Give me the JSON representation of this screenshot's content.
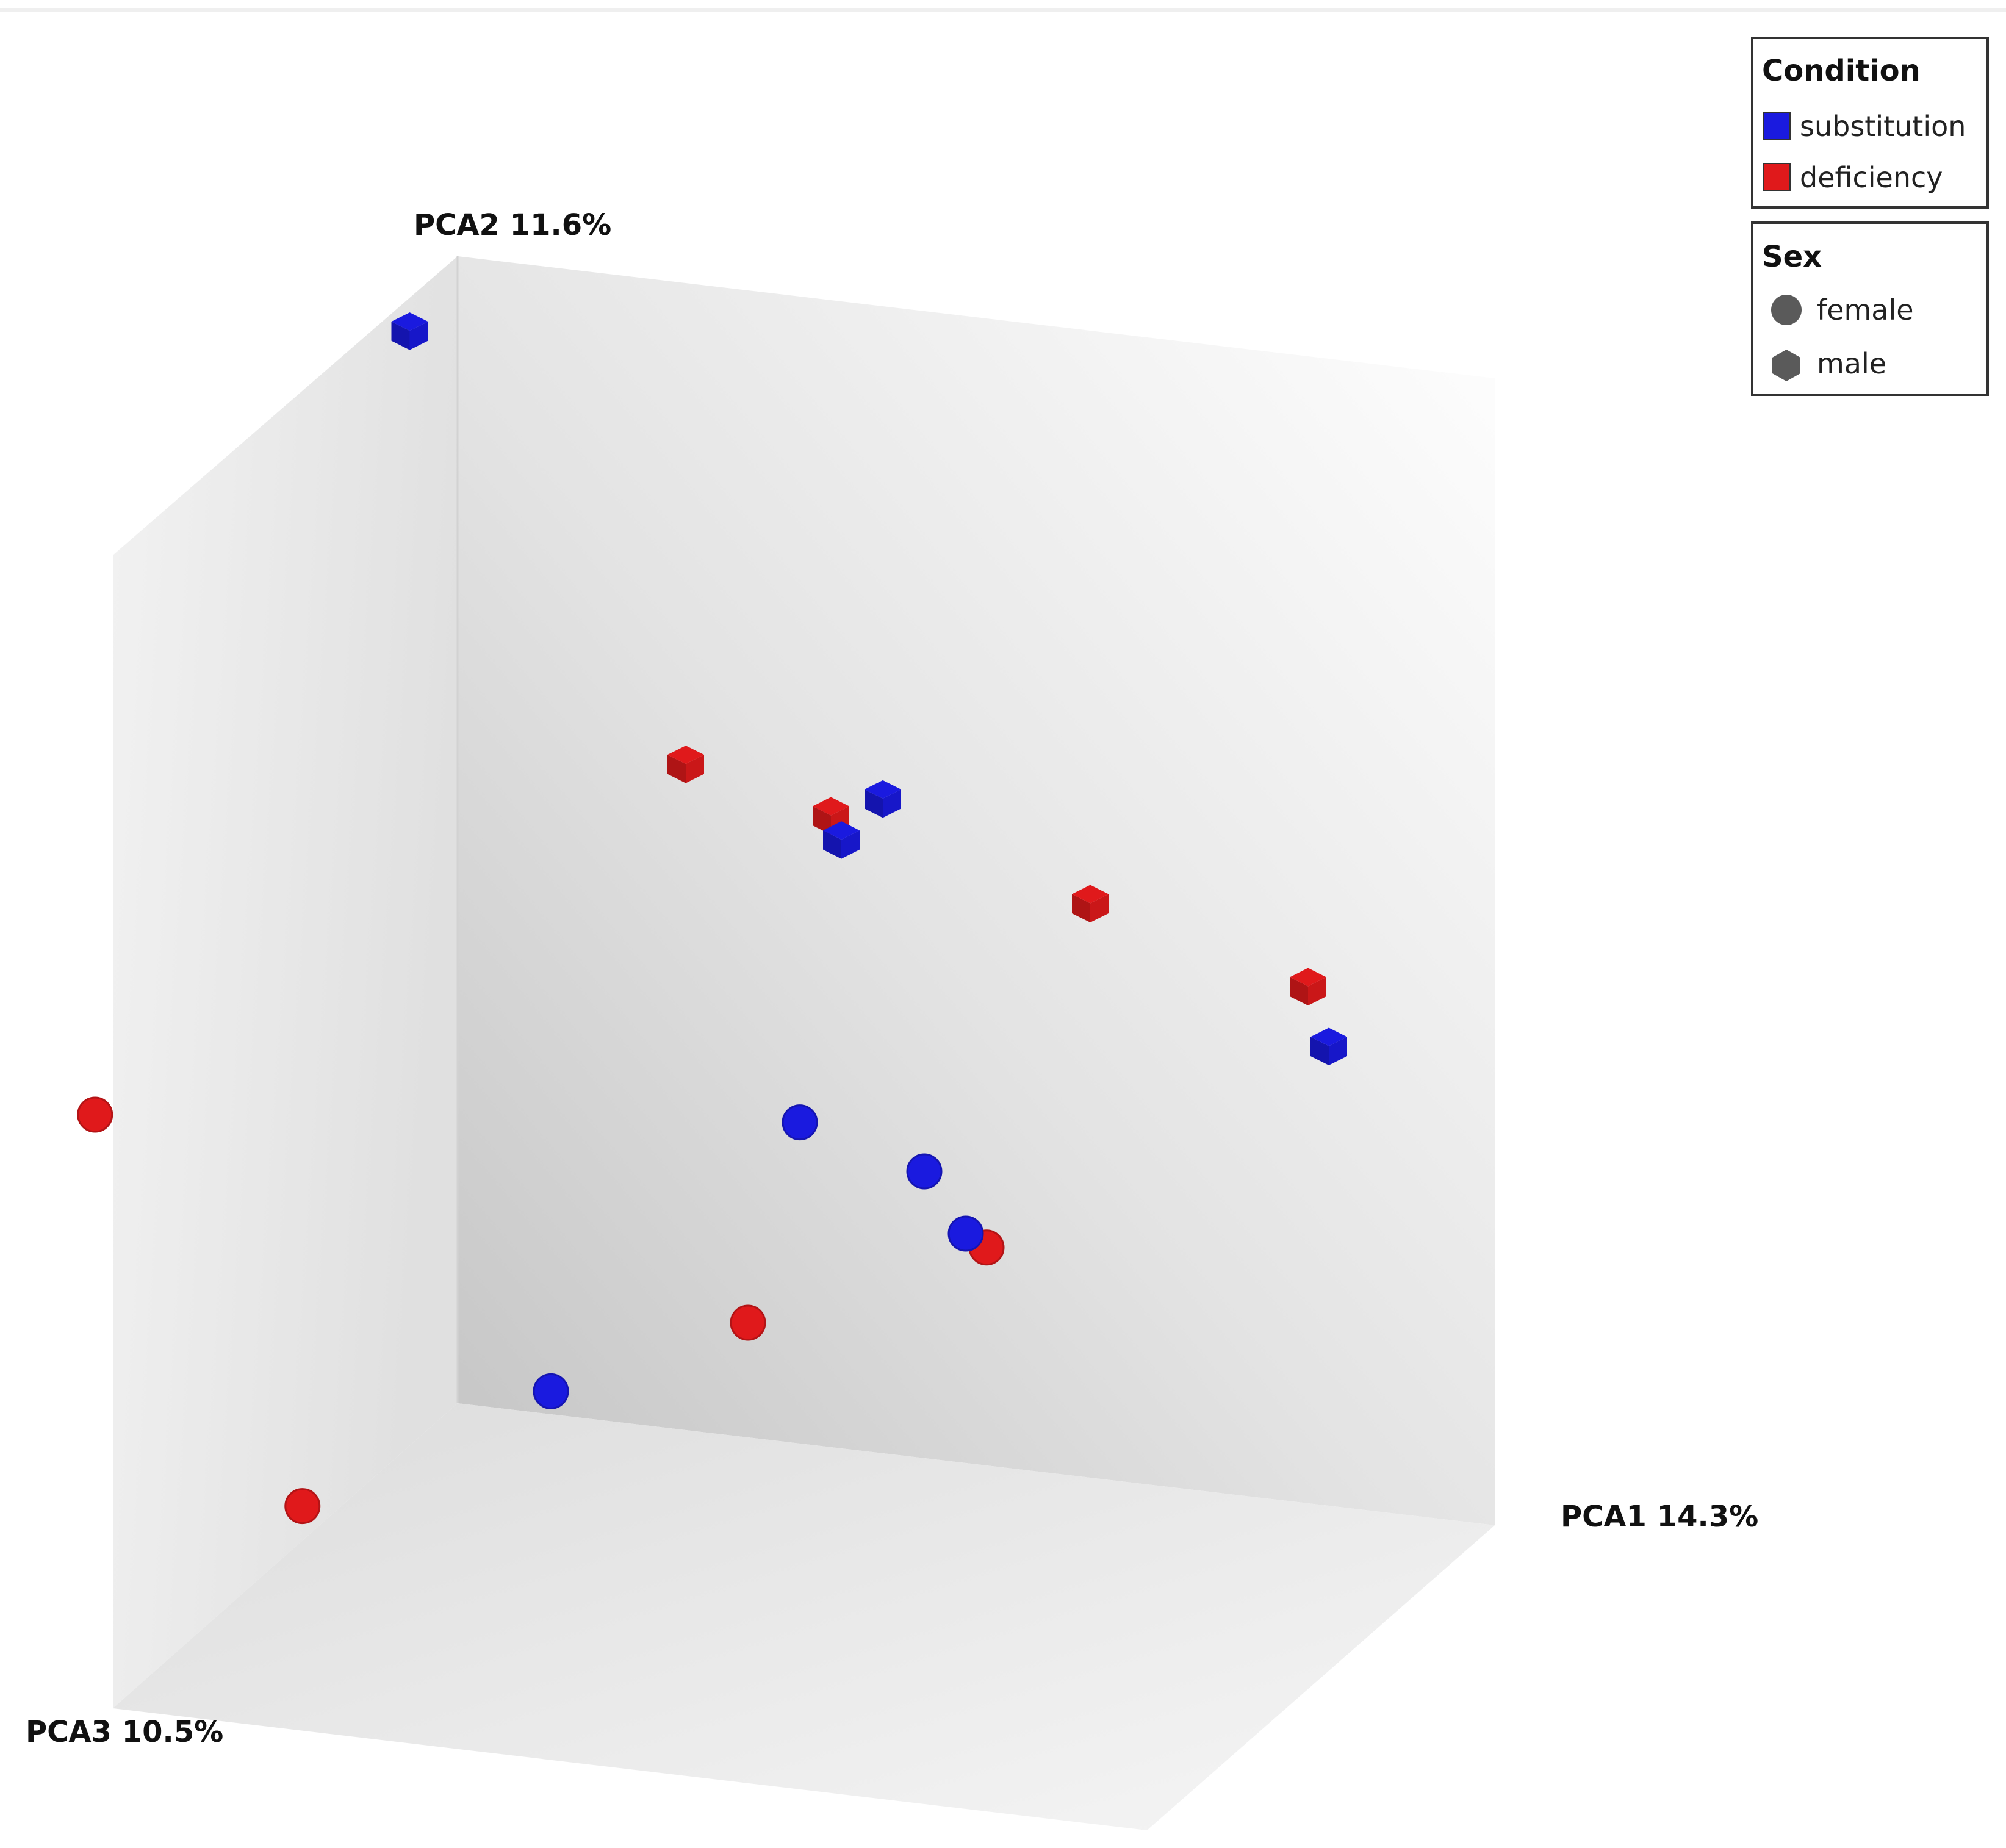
{
  "chart_data": {
    "type": "scatter",
    "subtype": "3d-pca",
    "axes": {
      "x": {
        "label": "PCA1 14.3%"
      },
      "y": {
        "label": "PCA2 11.6%"
      },
      "z": {
        "label": "PCA3 10.5%"
      }
    },
    "grid": false,
    "legend_position": "top-right",
    "legends": {
      "condition": {
        "title": "Condition",
        "items": [
          {
            "label": "substitution",
            "color": "#1a1adf"
          },
          {
            "label": "deficiency",
            "color": "#e0191b"
          }
        ]
      },
      "sex": {
        "title": "Sex",
        "items": [
          {
            "label": "female",
            "shape": "circle"
          },
          {
            "label": "male",
            "shape": "hexagon"
          }
        ]
      }
    },
    "colors": {
      "substitution": "#1a1adf",
      "deficiency": "#e0191b",
      "legend_shape": "#5a5a5a"
    },
    "points": [
      {
        "condition": "substitution",
        "sex": "male",
        "x": 0.12,
        "y": 1.08,
        "z": 0.5
      },
      {
        "condition": "deficiency",
        "sex": "male",
        "x": 0.22,
        "y": 0.58,
        "z": 0.0
      },
      {
        "condition": "deficiency",
        "sex": "male",
        "x": 0.36,
        "y": 0.55,
        "z": 0.0
      },
      {
        "condition": "substitution",
        "sex": "male",
        "x": 0.41,
        "y": 0.57,
        "z": 0.0
      },
      {
        "condition": "substitution",
        "sex": "male",
        "x": 0.37,
        "y": 0.53,
        "z": 0.0
      },
      {
        "condition": "deficiency",
        "sex": "male",
        "x": 0.61,
        "y": 0.5,
        "z": 0.0
      },
      {
        "condition": "deficiency",
        "sex": "male",
        "x": 0.82,
        "y": 0.45,
        "z": 0.0
      },
      {
        "condition": "substitution",
        "sex": "male",
        "x": 0.84,
        "y": 0.4,
        "z": 0.0
      },
      {
        "condition": "deficiency",
        "sex": "female",
        "x": -0.2,
        "y": 0.35,
        "z": 0.45
      },
      {
        "condition": "substitution",
        "sex": "female",
        "x": 0.33,
        "y": 0.28,
        "z": 0.0
      },
      {
        "condition": "substitution",
        "sex": "female",
        "x": 0.45,
        "y": 0.25,
        "z": 0.0
      },
      {
        "condition": "deficiency",
        "sex": "female",
        "x": 0.51,
        "y": 0.19,
        "z": 0.0
      },
      {
        "condition": "substitution",
        "sex": "female",
        "x": 0.49,
        "y": 0.2,
        "z": 0.0
      },
      {
        "condition": "deficiency",
        "sex": "female",
        "x": 0.28,
        "y": 0.1,
        "z": 0.0
      },
      {
        "condition": "deficiency",
        "sex": "female",
        "x": 0.0,
        "y": 0.03,
        "z": 0.45
      },
      {
        "condition": "substitution",
        "sex": "female",
        "x": 0.09,
        "y": 0.02,
        "z": 0.0
      }
    ]
  }
}
